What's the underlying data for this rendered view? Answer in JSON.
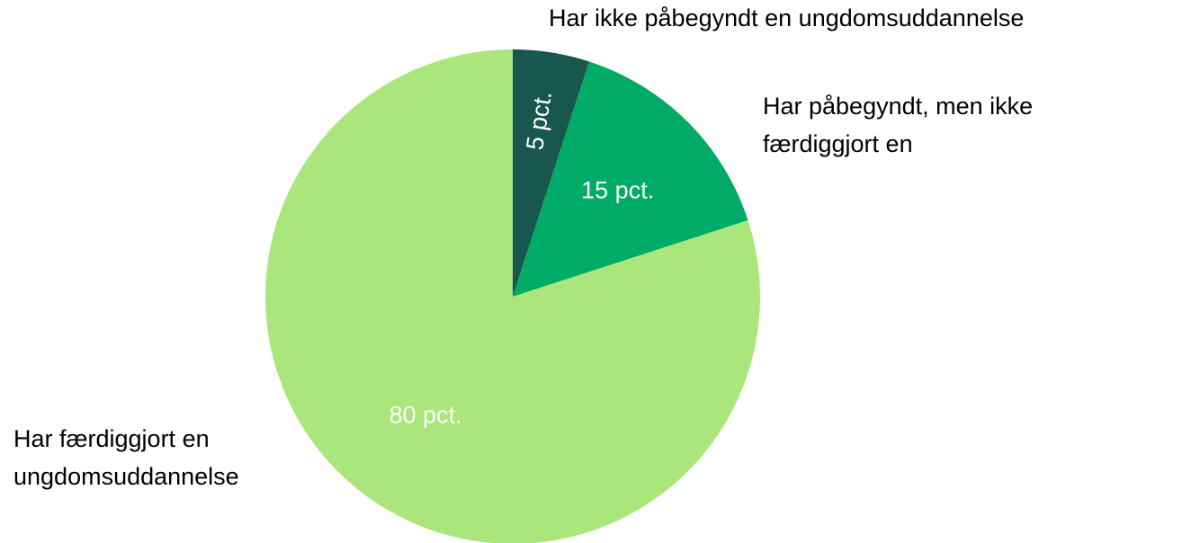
{
  "chart_data": {
    "type": "pie",
    "categories": [
      "Har ikke påbegyndt en ungdomsuddannelse",
      "Har påbegyndt, men ikke færdiggjort en",
      "Har færdiggjort en ungdomsuddannelse"
    ],
    "values": [
      5,
      15,
      80
    ],
    "value_labels": [
      "5 pct.",
      "15 pct.",
      "80 pct."
    ],
    "colors": [
      "#17574d",
      "#00ab67",
      "#aae67b"
    ]
  }
}
